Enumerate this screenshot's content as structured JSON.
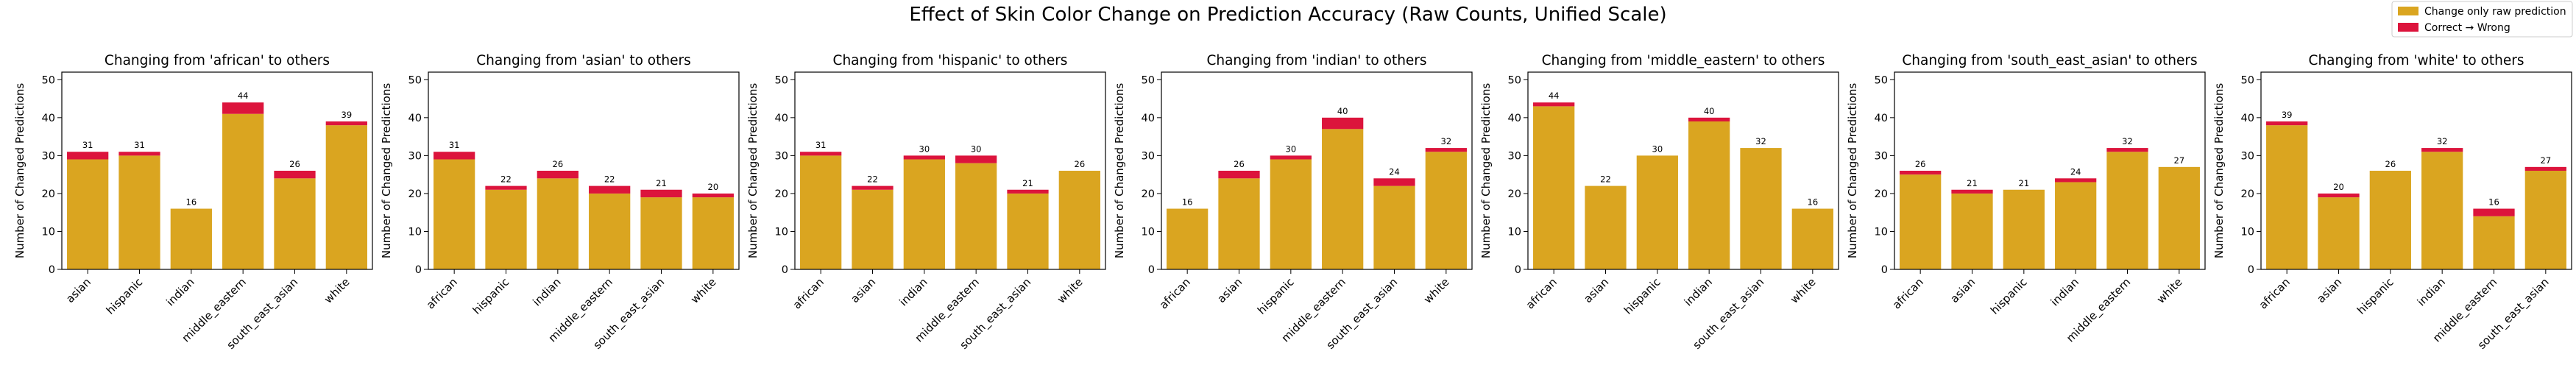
{
  "figure_title": "Effect of Skin Color Change on Prediction Accuracy (Raw Counts, Unified Scale)",
  "colors": {
    "raw": "#DAA520",
    "wrong": "#DC143C"
  },
  "legend": {
    "items": [
      "Change only raw prediction",
      "Correct → Wrong"
    ],
    "placement": "top-right"
  },
  "chart_data": [
    {
      "type": "bar",
      "title": "Changing from 'african' to others",
      "ylabel": "Number of Changed Predictions",
      "ylim": [
        0,
        52
      ],
      "yticks": [
        0,
        10,
        20,
        30,
        40,
        50
      ],
      "categories": [
        "asian",
        "hispanic",
        "indian",
        "middle_eastern",
        "south_east_asian",
        "white"
      ],
      "series": [
        {
          "name": "Change only raw prediction",
          "values": [
            29,
            30,
            16,
            41,
            24,
            38
          ]
        },
        {
          "name": "Correct → Wrong",
          "values": [
            2,
            1,
            0,
            3,
            2,
            1
          ]
        }
      ],
      "totals": [
        31,
        31,
        16,
        44,
        26,
        39
      ]
    },
    {
      "type": "bar",
      "title": "Changing from 'asian' to others",
      "ylabel": "Number of Changed Predictions",
      "ylim": [
        0,
        52
      ],
      "yticks": [
        0,
        10,
        20,
        30,
        40,
        50
      ],
      "categories": [
        "african",
        "hispanic",
        "indian",
        "middle_eastern",
        "south_east_asian",
        "white"
      ],
      "series": [
        {
          "name": "Change only raw prediction",
          "values": [
            29,
            21,
            24,
            20,
            19,
            19
          ]
        },
        {
          "name": "Correct → Wrong",
          "values": [
            2,
            1,
            2,
            2,
            2,
            1
          ]
        }
      ],
      "totals": [
        31,
        22,
        26,
        22,
        21,
        20
      ]
    },
    {
      "type": "bar",
      "title": "Changing from 'hispanic' to others",
      "ylabel": "Number of Changed Predictions",
      "ylim": [
        0,
        52
      ],
      "yticks": [
        0,
        10,
        20,
        30,
        40,
        50
      ],
      "categories": [
        "african",
        "asian",
        "indian",
        "middle_eastern",
        "south_east_asian",
        "white"
      ],
      "series": [
        {
          "name": "Change only raw prediction",
          "values": [
            30,
            21,
            29,
            28,
            20,
            26
          ]
        },
        {
          "name": "Correct → Wrong",
          "values": [
            1,
            1,
            1,
            2,
            1,
            0
          ]
        }
      ],
      "totals": [
        31,
        22,
        30,
        30,
        21,
        26
      ]
    },
    {
      "type": "bar",
      "title": "Changing from 'indian' to others",
      "ylabel": "Number of Changed Predictions",
      "ylim": [
        0,
        52
      ],
      "yticks": [
        0,
        10,
        20,
        30,
        40,
        50
      ],
      "categories": [
        "african",
        "asian",
        "hispanic",
        "middle_eastern",
        "south_east_asian",
        "white"
      ],
      "series": [
        {
          "name": "Change only raw prediction",
          "values": [
            16,
            24,
            29,
            37,
            22,
            31
          ]
        },
        {
          "name": "Correct → Wrong",
          "values": [
            0,
            2,
            1,
            3,
            2,
            1
          ]
        }
      ],
      "totals": [
        16,
        26,
        30,
        40,
        24,
        32
      ]
    },
    {
      "type": "bar",
      "title": "Changing from 'middle_eastern' to others",
      "ylabel": "Number of Changed Predictions",
      "ylim": [
        0,
        52
      ],
      "yticks": [
        0,
        10,
        20,
        30,
        40,
        50
      ],
      "categories": [
        "african",
        "asian",
        "hispanic",
        "indian",
        "south_east_asian",
        "white"
      ],
      "series": [
        {
          "name": "Change only raw prediction",
          "values": [
            43,
            22,
            30,
            39,
            32,
            16
          ]
        },
        {
          "name": "Correct → Wrong",
          "values": [
            1,
            0,
            0,
            1,
            0,
            0
          ]
        }
      ],
      "totals": [
        44,
        22,
        30,
        40,
        32,
        16
      ]
    },
    {
      "type": "bar",
      "title": "Changing from 'south_east_asian' to others",
      "ylabel": "Number of Changed Predictions",
      "ylim": [
        0,
        52
      ],
      "yticks": [
        0,
        10,
        20,
        30,
        40,
        50
      ],
      "categories": [
        "african",
        "asian",
        "hispanic",
        "indian",
        "middle_eastern",
        "white"
      ],
      "series": [
        {
          "name": "Change only raw prediction",
          "values": [
            25,
            20,
            21,
            23,
            31,
            27
          ]
        },
        {
          "name": "Correct → Wrong",
          "values": [
            1,
            1,
            0,
            1,
            1,
            0
          ]
        }
      ],
      "totals": [
        26,
        21,
        21,
        24,
        32,
        27
      ]
    },
    {
      "type": "bar",
      "title": "Changing from 'white' to others",
      "ylabel": "Number of Changed Predictions",
      "ylim": [
        0,
        52
      ],
      "yticks": [
        0,
        10,
        20,
        30,
        40,
        50
      ],
      "categories": [
        "african",
        "asian",
        "hispanic",
        "indian",
        "middle_eastern",
        "south_east_asian"
      ],
      "series": [
        {
          "name": "Change only raw prediction",
          "values": [
            38,
            19,
            26,
            31,
            14,
            26
          ]
        },
        {
          "name": "Correct → Wrong",
          "values": [
            1,
            1,
            0,
            1,
            2,
            1
          ]
        }
      ],
      "totals": [
        39,
        20,
        26,
        32,
        16,
        27
      ]
    }
  ]
}
